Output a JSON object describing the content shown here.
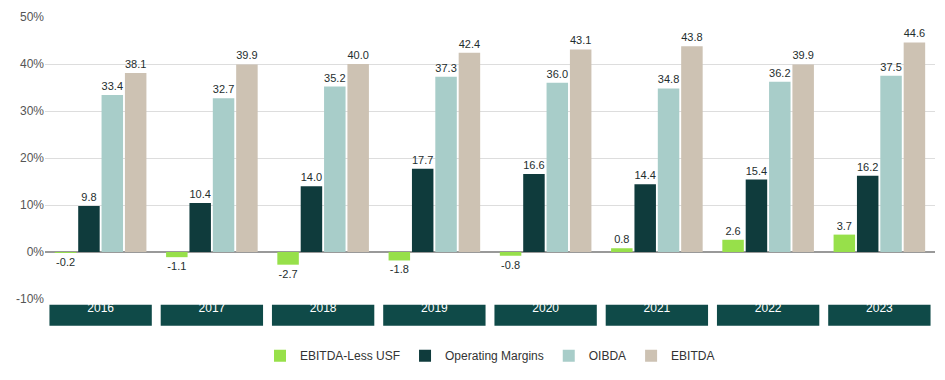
{
  "chart_data": {
    "type": "bar",
    "categories": [
      "2016",
      "2017",
      "2018",
      "2019",
      "2020",
      "2021",
      "2022",
      "2023"
    ],
    "series": [
      {
        "name": "EBITDA-Less USF",
        "color": "#97e04a",
        "values": [
          -0.2,
          -1.1,
          -2.7,
          -1.8,
          -0.8,
          0.8,
          2.6,
          3.7
        ]
      },
      {
        "name": "Operating Margins",
        "color": "#0f3b3c",
        "values": [
          9.8,
          10.4,
          14.0,
          17.7,
          16.6,
          14.4,
          15.4,
          16.2
        ],
        "value_labels": [
          "9.8",
          "10.4",
          "14.0",
          "17.7",
          "16.6",
          "14.4",
          "15.4",
          "16.2"
        ]
      },
      {
        "name": "OIBDA",
        "color": "#a8cdc9",
        "values": [
          33.4,
          32.7,
          35.2,
          37.3,
          36.0,
          34.8,
          36.2,
          37.5
        ],
        "value_labels": [
          "33.4",
          "32.7",
          "35.2",
          "37.3",
          "36.0",
          "34.8",
          "36.2",
          "37.5"
        ]
      },
      {
        "name": "EBITDA",
        "color": "#cdc2b3",
        "values": [
          38.1,
          39.9,
          40.0,
          42.4,
          43.1,
          43.8,
          39.9,
          44.6
        ],
        "value_labels": [
          "38.1",
          "39.9",
          "40.0",
          "42.4",
          "43.1",
          "43.8",
          "39.9",
          "44.6"
        ]
      }
    ],
    "ylim": [
      -10,
      50
    ],
    "yticks": [
      {
        "value": -10,
        "label": "-10%"
      },
      {
        "value": 0,
        "label": "0%"
      },
      {
        "value": 10,
        "label": "10%"
      },
      {
        "value": 20,
        "label": "20%"
      },
      {
        "value": 30,
        "label": "30%"
      },
      {
        "value": 40,
        "label": "40%"
      },
      {
        "value": 50,
        "label": "50%"
      }
    ],
    "grid": true,
    "legend": "bottom",
    "data_labels": true
  }
}
